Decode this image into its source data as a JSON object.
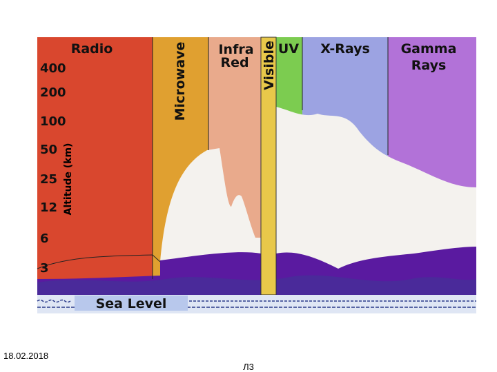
{
  "diagram": {
    "bands": [
      "Radio",
      "Microwave",
      "Infra",
      "Red",
      "Visible",
      "UV",
      "X-Rays",
      "Gamma",
      "Rays"
    ],
    "axis_label": "Altitude (km)",
    "altitudes": [
      400,
      200,
      100,
      50,
      25,
      12,
      6,
      3
    ],
    "sea_level": "Sea Level"
  },
  "footer": {
    "date": "18.02.2018",
    "page": "Л3"
  }
}
